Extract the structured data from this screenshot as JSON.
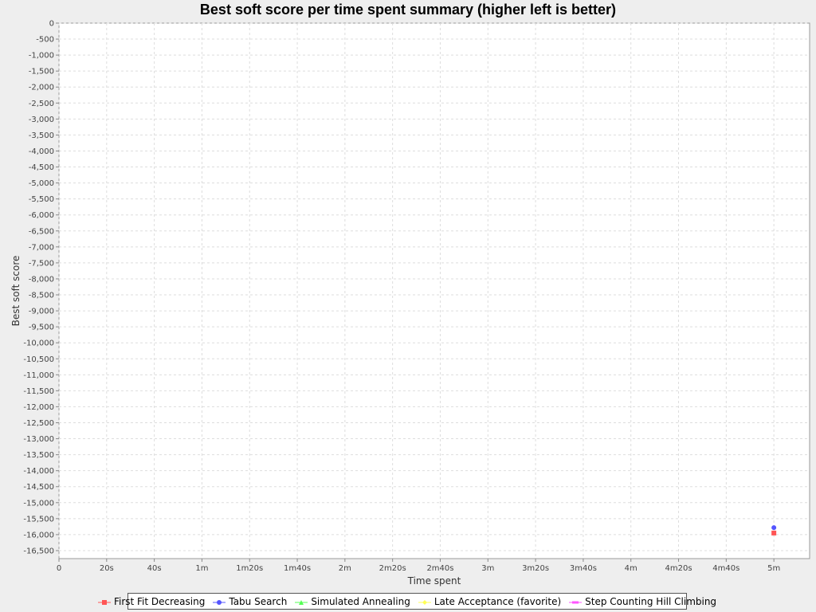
{
  "chart_data": {
    "type": "scatter",
    "title": "Best soft score per time spent summary (higher left is better)",
    "xlabel": "Time spent",
    "ylabel": "Best soft score",
    "xlim": [
      0,
      315
    ],
    "ylim": [
      -16750,
      0
    ],
    "x_ticks": [
      {
        "value": 0,
        "label": "0"
      },
      {
        "value": 20,
        "label": "20s"
      },
      {
        "value": 40,
        "label": "40s"
      },
      {
        "value": 60,
        "label": "1m"
      },
      {
        "value": 80,
        "label": "1m20s"
      },
      {
        "value": 100,
        "label": "1m40s"
      },
      {
        "value": 120,
        "label": "2m"
      },
      {
        "value": 140,
        "label": "2m20s"
      },
      {
        "value": 160,
        "label": "2m40s"
      },
      {
        "value": 180,
        "label": "3m"
      },
      {
        "value": 200,
        "label": "3m20s"
      },
      {
        "value": 220,
        "label": "3m40s"
      },
      {
        "value": 240,
        "label": "4m"
      },
      {
        "value": 260,
        "label": "4m20s"
      },
      {
        "value": 280,
        "label": "4m40s"
      },
      {
        "value": 300,
        "label": "5m"
      }
    ],
    "y_ticks": [
      0,
      -500,
      -1000,
      -1500,
      -2000,
      -2500,
      -3000,
      -3500,
      -4000,
      -4500,
      -5000,
      -5500,
      -6000,
      -6500,
      -7000,
      -7500,
      -8000,
      -8500,
      -9000,
      -9500,
      -10000,
      -10500,
      -11000,
      -11500,
      -12000,
      -12500,
      -13000,
      -13500,
      -14000,
      -14500,
      -15000,
      -15500,
      -16000,
      -16500
    ],
    "grid": true,
    "legend_position": "bottom",
    "series": [
      {
        "name": "First Fit Decreasing",
        "color": "#ff5555",
        "marker": "square",
        "points": [
          {
            "x": 300,
            "y": -15950
          }
        ]
      },
      {
        "name": "Tabu Search",
        "color": "#5555ff",
        "marker": "circle",
        "points": [
          {
            "x": 300,
            "y": -15780
          }
        ]
      },
      {
        "name": "Simulated Annealing",
        "color": "#55ff55",
        "marker": "triangle",
        "points": []
      },
      {
        "name": "Late Acceptance (favorite)",
        "color": "#ffff55",
        "marker": "diamond",
        "points": []
      },
      {
        "name": "Step Counting Hill Climbing",
        "color": "#ff55ff",
        "marker": "rect",
        "points": []
      }
    ]
  }
}
